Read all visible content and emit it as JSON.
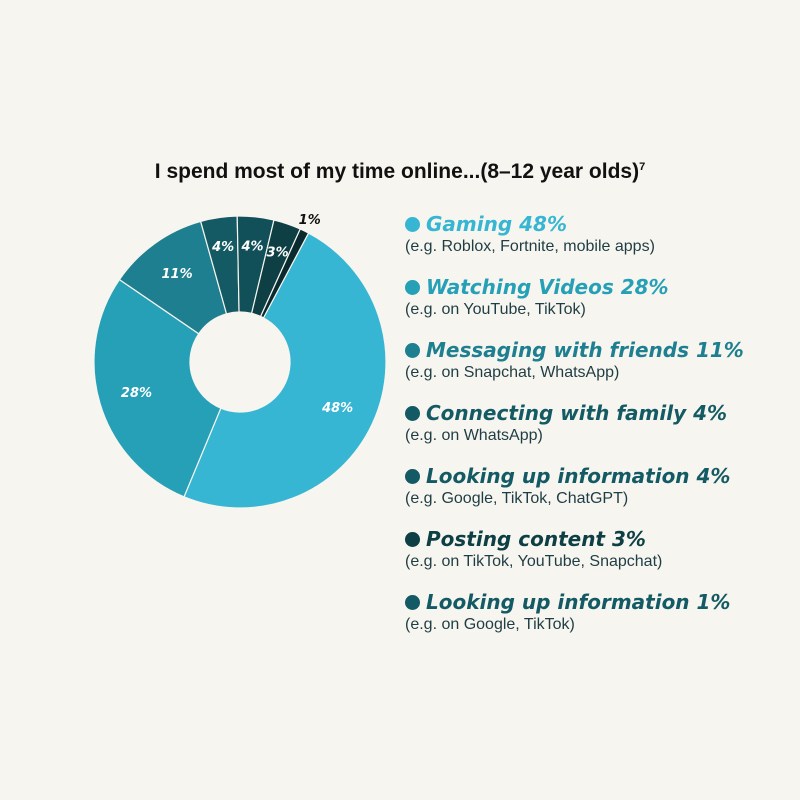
{
  "title": "I spend most of my time online...(8–12 year olds)",
  "title_note": "7",
  "colors": {
    "gaming": "#36b6d2",
    "videos": "#25a0b6",
    "messaging": "#1d7f90",
    "family": "#145a64",
    "lookup4": "#125059",
    "posting": "#0d3f45",
    "lookup1": "#0a2a30"
  },
  "chart_data": {
    "type": "pie",
    "donut": true,
    "title": "I spend most of my time online...(8–12 year olds)",
    "categories": [
      "Gaming",
      "Watching Videos",
      "Messaging with friends",
      "Connecting with family",
      "Looking up information",
      "Posting content",
      "Looking up information"
    ],
    "values": [
      48,
      28,
      11,
      4,
      4,
      3,
      1
    ],
    "slice_labels": [
      "48%",
      "28%",
      "11%",
      "4%",
      "4%",
      "3%",
      "1%"
    ],
    "slice_colors": [
      "#36b6d2",
      "#25a0b6",
      "#1d7f90",
      "#145a64",
      "#125059",
      "#0d3f45",
      "#0a2a30"
    ],
    "legend_placement": "right"
  },
  "legend": [
    {
      "title": "Gaming 48%",
      "sub": "(e.g. Roblox, Fortnite, mobile apps)",
      "color": "#36b6d2"
    },
    {
      "title": "Watching Videos 28%",
      "sub": "(e.g. on YouTube, TikTok)",
      "color": "#25a0b6"
    },
    {
      "title": "Messaging with friends 11%",
      "sub": "(e.g. on Snapchat, WhatsApp)",
      "color": "#1d7f90"
    },
    {
      "title": "Connecting with family 4%",
      "sub": "(e.g. on WhatsApp)",
      "color": "#145a64"
    },
    {
      "title": "Looking up information 4%",
      "sub": "(e.g. Google, TikTok, ChatGPT)",
      "color": "#145a64"
    },
    {
      "title": "Posting content 3%",
      "sub": "(e.g. on TikTok, YouTube, Snapchat)",
      "color": "#0d3f45"
    },
    {
      "title": "Looking up information 1%",
      "sub": "(e.g. on Google, TikTok)",
      "color": "#145a64"
    }
  ]
}
